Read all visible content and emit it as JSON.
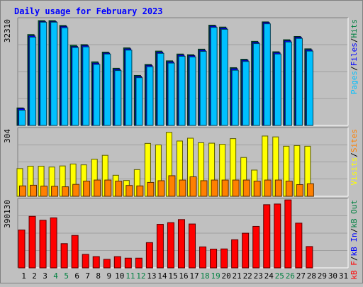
{
  "chart_data": {
    "type": "bar",
    "title": "Daily usage for February 2023",
    "categories": [
      "1",
      "2",
      "3",
      "4",
      "5",
      "6",
      "7",
      "8",
      "9",
      "10",
      "11",
      "12",
      "13",
      "14",
      "15",
      "16",
      "17",
      "18",
      "19",
      "20",
      "21",
      "22",
      "23",
      "24",
      "25",
      "26",
      "27",
      "28",
      "29",
      "30",
      "31"
    ],
    "weekend_days": [
      4,
      5,
      11,
      12,
      18,
      19,
      25,
      26
    ],
    "panels": [
      {
        "id": "hits",
        "ymax_label": "32310",
        "ymax": 32310,
        "legend": [
          {
            "text": "Pages",
            "color": "#00c0ff"
          },
          {
            "text": "Files",
            "color": "#0000ff"
          },
          {
            "text": "Hits",
            "color": "#008040"
          }
        ],
        "series": [
          {
            "name": "Hits",
            "color": "#008040",
            "values": [
              5400,
              28000,
              32300,
              32300,
              30800,
              24700,
              24900,
              19600,
              22600,
              17600,
              23900,
              15400,
              18800,
              22900,
              19900,
              22000,
              21800,
              23500,
              30900,
              30300,
              17800,
              20400,
              25900,
              31900,
              22700,
              26400,
              27400,
              23600,
              0,
              0,
              0
            ]
          },
          {
            "name": "Files",
            "color": "#0000ff",
            "values": [
              5200,
              27600,
              32000,
              32000,
              30500,
              24300,
              24600,
              19200,
              22300,
              17300,
              23600,
              15100,
              18500,
              22600,
              19600,
              21700,
              21500,
              23200,
              30600,
              30000,
              17500,
              20100,
              25600,
              31700,
              22400,
              26100,
              27200,
              23300,
              0,
              0,
              0
            ]
          },
          {
            "name": "Pages",
            "color": "#00c0ff",
            "values": [
              4700,
              27200,
              31800,
              31800,
              30100,
              24000,
              24200,
              18800,
              22000,
              16900,
              23200,
              14700,
              18100,
              22200,
              19200,
              21300,
              21100,
              22800,
              30200,
              29600,
              17000,
              19700,
              25200,
              31300,
              22000,
              25700,
              26800,
              22900,
              0,
              0,
              0
            ]
          }
        ]
      },
      {
        "id": "visits",
        "ymax_label": "304",
        "ymax": 304,
        "legend": [
          {
            "text": "Visits",
            "color": "#ffff00"
          },
          {
            "text": "Sites",
            "color": "#ff8000"
          }
        ],
        "series": [
          {
            "name": "Visits",
            "color": "#ffff00",
            "values": [
              128,
              139,
              139,
              135,
              140,
              149,
              145,
              171,
              189,
              97,
              73,
              123,
              244,
              237,
              295,
              255,
              268,
              247,
              245,
              240,
              266,
              179,
              121,
              278,
              274,
              231,
              234,
              231,
              0,
              0,
              0
            ]
          },
          {
            "name": "Sites",
            "color": "#ff8000",
            "values": [
              48,
              51,
              47,
              46,
              44,
              55,
              70,
              75,
              75,
              70,
              50,
              48,
              64,
              72,
              95,
              75,
              90,
              72,
              75,
              75,
              75,
              75,
              70,
              75,
              75,
              70,
              54,
              58,
              0,
              0,
              0
            ]
          }
        ]
      },
      {
        "id": "kbytes",
        "ymax_label": "390130",
        "ymax": 390130,
        "legend": [
          {
            "text": "kB F",
            "color": "#ff0000"
          },
          {
            "text": "kB In",
            "color": "#0000ff"
          },
          {
            "text": "kB Out",
            "color": "#008040"
          }
        ],
        "series": [
          {
            "name": "kB F",
            "color": "#ff0000",
            "values": [
              222000,
              302000,
              279000,
              293000,
              142000,
              190000,
              79000,
              66000,
              50000,
              66000,
              57000,
              57000,
              148000,
              255000,
              265000,
              283000,
              257000,
              123000,
              110000,
              111000,
              165000,
              203000,
              243000,
              370000,
              374000,
              398000,
              262000,
              125000,
              0,
              0,
              0
            ]
          }
        ]
      }
    ]
  }
}
